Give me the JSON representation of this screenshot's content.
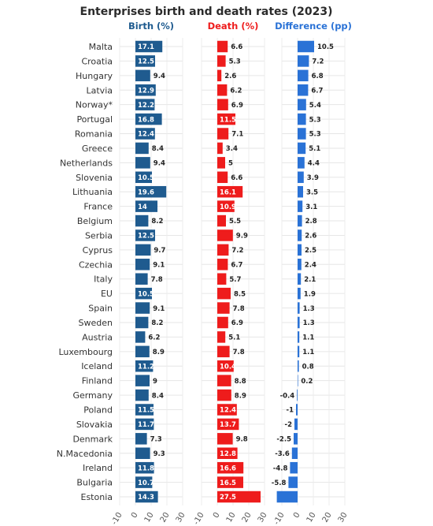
{
  "chart_data": {
    "type": "bar",
    "orientation": "horizontal",
    "title": "Enterprises birth and death rates (2023)",
    "categories": [
      "Malta",
      "Croatia",
      "Hungary",
      "Latvia",
      "Norway*",
      "Portugal",
      "Romania",
      "Greece",
      "Netherlands",
      "Slovenia",
      "Lithuania",
      "France",
      "Belgium",
      "Serbia",
      "Cyprus",
      "Czechia",
      "Italy",
      "EU",
      "Spain",
      "Sweden",
      "Austria",
      "Luxembourg",
      "Iceland",
      "Finland",
      "Germany",
      "Poland",
      "Slovakia",
      "Denmark",
      "N.Macedonia",
      "Ireland",
      "Bulgaria",
      "Estonia"
    ],
    "series": [
      {
        "name": "Birth (%)",
        "color": "#1f5b8f",
        "values": [
          17.1,
          12.5,
          9.4,
          12.9,
          12.2,
          16.8,
          12.4,
          8.4,
          9.4,
          10.5,
          19.6,
          14,
          8.2,
          12.5,
          9.7,
          9.1,
          7.8,
          10.5,
          9.1,
          8.2,
          6.2,
          8.9,
          11.2,
          9,
          8.4,
          11.5,
          11.7,
          7.3,
          9.3,
          11.8,
          10.7,
          14.3
        ]
      },
      {
        "name": "Death (%)",
        "color": "#ee1c1c",
        "values": [
          6.6,
          5.3,
          2.6,
          6.2,
          6.9,
          11.5,
          7.1,
          3.4,
          5,
          6.6,
          16.1,
          10.9,
          5.5,
          9.9,
          7.2,
          6.7,
          5.7,
          8.5,
          7.8,
          6.9,
          5.1,
          7.8,
          10.4,
          8.8,
          8.9,
          12.4,
          13.7,
          9.8,
          12.8,
          16.6,
          16.5,
          27.5
        ]
      },
      {
        "name": "Difference (pp)",
        "color": "#2a72d6",
        "values": [
          10.5,
          7.2,
          6.8,
          6.7,
          5.4,
          5.3,
          5.3,
          5.1,
          4.4,
          3.9,
          3.5,
          3.1,
          2.8,
          2.6,
          2.5,
          2.4,
          2.1,
          1.9,
          1.3,
          1.3,
          1.1,
          1.1,
          0.8,
          0.2,
          -0.4,
          -1,
          -2,
          -2.5,
          -3.6,
          -4.8,
          -5.8,
          -13.2
        ]
      }
    ],
    "value_labels": {
      "Difference (pp)": [
        "10.5",
        "7.2",
        "6.8",
        "6.7",
        "5.4",
        "5.3",
        "5.3",
        "5.1",
        "4.4",
        "3.9",
        "3.5",
        "3.1",
        "2.8",
        "2.6",
        "2.5",
        "2.4",
        "2.1",
        "1.9",
        "1.3",
        "1.3",
        "1.1",
        "1.1",
        "0.8",
        "0.2",
        "-0.4",
        "-1",
        "-2",
        "-2.5",
        "-3.6",
        "-4.8",
        "-5.8",
        ""
      ]
    },
    "xlim": [
      -10,
      30
    ],
    "xticks": [
      -10,
      0,
      10,
      20,
      30
    ],
    "grid": true
  }
}
